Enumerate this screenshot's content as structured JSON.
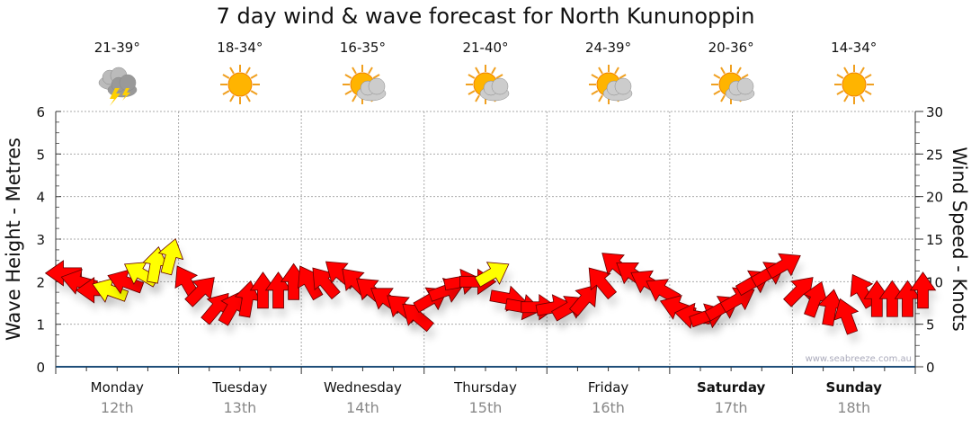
{
  "title": "7 day wind & wave forecast for North Kununoppin",
  "days": [
    {
      "name": "Monday",
      "date": "12th",
      "temp": "21-39°",
      "icon": "thunderstorm-icon",
      "bold": false
    },
    {
      "name": "Tuesday",
      "date": "13th",
      "temp": "18-34°",
      "icon": "sun-icon",
      "bold": false
    },
    {
      "name": "Wednesday",
      "date": "14th",
      "temp": "16-35°",
      "icon": "sun-cloud-icon",
      "bold": false
    },
    {
      "name": "Thursday",
      "date": "15th",
      "temp": "21-40°",
      "icon": "sun-cloud-icon",
      "bold": false
    },
    {
      "name": "Friday",
      "date": "16th",
      "temp": "24-39°",
      "icon": "sun-cloud-icon",
      "bold": false
    },
    {
      "name": "Saturday",
      "date": "17th",
      "temp": "20-36°",
      "icon": "sun-cloud-icon",
      "bold": true
    },
    {
      "name": "Sunday",
      "date": "18th",
      "temp": "14-34°",
      "icon": "sun-icon",
      "bold": true
    }
  ],
  "watermark": "www.seabreeze.com.au",
  "colors": {
    "arrow": "#ff0000",
    "gust": "#ffff00",
    "axis": "#1f4e79"
  },
  "chart_data": {
    "type": "scatter",
    "title": "7 day wind & wave forecast for North Kununoppin",
    "ylabel": "Wave Height - Metres",
    "y2label": "Wind Speed - Knots",
    "ylim": [
      0,
      6
    ],
    "y2lim": [
      0,
      30
    ],
    "yticks": [
      "0",
      "1",
      "2",
      "3",
      "4",
      "5",
      "6"
    ],
    "y2ticks": [
      "0",
      "5",
      "10",
      "15",
      "20",
      "25",
      "30"
    ],
    "grid": true,
    "interval_hours": 3,
    "wind_speed_knots": [
      11,
      10,
      9,
      9,
      10,
      11,
      12,
      13,
      10,
      9,
      7,
      7,
      8,
      9,
      9,
      10,
      10,
      10,
      11,
      10,
      9,
      8,
      7,
      6,
      8,
      9,
      10,
      10,
      11,
      8,
      7,
      7,
      7,
      7,
      8,
      10,
      12,
      11,
      10,
      9,
      7,
      6,
      6,
      7,
      8,
      10,
      11,
      12,
      9,
      8,
      7,
      6,
      9,
      8,
      8,
      8,
      9
    ],
    "wind_direction_deg": [
      270,
      285,
      270,
      290,
      290,
      300,
      10,
      15,
      330,
      45,
      40,
      30,
      10,
      0,
      0,
      0,
      330,
      320,
      310,
      315,
      310,
      305,
      310,
      310,
      60,
      70,
      80,
      90,
      60,
      100,
      100,
      90,
      80,
      60,
      40,
      320,
      310,
      305,
      300,
      300,
      290,
      280,
      70,
      60,
      60,
      60,
      60,
      60,
      45,
      20,
      10,
      340,
      330,
      0,
      0,
      0,
      0
    ],
    "gust_flag": [
      0,
      0,
      0,
      1,
      0,
      1,
      1,
      1,
      0,
      0,
      0,
      0,
      0,
      0,
      0,
      0,
      0,
      0,
      0,
      0,
      0,
      0,
      0,
      0,
      0,
      0,
      0,
      0,
      1,
      0,
      0,
      0,
      0,
      0,
      0,
      0,
      0,
      0,
      0,
      0,
      0,
      0,
      0,
      0,
      0,
      0,
      0,
      0,
      0,
      0,
      0,
      0,
      0,
      0,
      0,
      0,
      0
    ]
  }
}
